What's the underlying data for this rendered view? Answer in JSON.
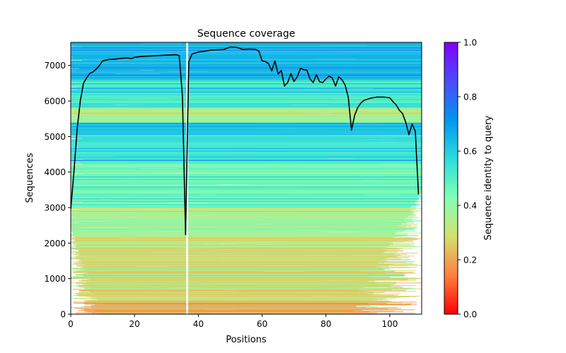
{
  "chart_data": {
    "type": "heatmap",
    "title": "Sequence coverage",
    "xlabel": "Positions",
    "ylabel": "Sequences",
    "xlim": [
      0,
      110
    ],
    "ylim": [
      0,
      7650
    ],
    "xticks": [
      0,
      20,
      40,
      60,
      80,
      100
    ],
    "yticks": [
      0,
      1000,
      2000,
      3000,
      4000,
      5000,
      6000,
      7000
    ],
    "grid": false,
    "colorbar": {
      "label": "Sequence identity to query",
      "range": [
        0,
        1
      ],
      "ticks": [
        0.0,
        0.2,
        0.4,
        0.6,
        0.8,
        1.0
      ],
      "tick_labels": [
        "0.0",
        "0.2",
        "0.4",
        "0.6",
        "0.8",
        "1.0"
      ],
      "colormap": "rainbow_r",
      "colormap_stops": [
        "#ff0000",
        "#ff7f40",
        "#d4e06f",
        "#80ffb4",
        "#2adddd",
        "#0096ef",
        "#4c4afa",
        "#8000ff"
      ]
    },
    "identity_bands": [
      {
        "from": 0,
        "to": 400,
        "identity": 0.22
      },
      {
        "from": 400,
        "to": 1200,
        "identity": 0.27
      },
      {
        "from": 1200,
        "to": 2200,
        "identity": 0.3
      },
      {
        "from": 2200,
        "to": 3000,
        "identity": 0.36
      },
      {
        "from": 3000,
        "to": 4300,
        "identity": 0.45
      },
      {
        "from": 4300,
        "to": 5100,
        "identity": 0.55
      },
      {
        "from": 5100,
        "to": 5400,
        "identity": 0.62
      },
      {
        "from": 5400,
        "to": 5800,
        "identity": 0.35
      },
      {
        "from": 5800,
        "to": 6600,
        "identity": 0.52
      },
      {
        "from": 6600,
        "to": 7650,
        "identity": 0.64
      }
    ],
    "coverage_line": {
      "name": "coverage",
      "color": "#000000",
      "x": [
        0,
        1,
        2,
        3,
        4,
        5,
        6,
        7,
        8,
        9,
        10,
        11,
        12,
        14,
        16,
        18,
        19,
        20,
        22,
        24,
        26,
        28,
        30,
        32,
        33,
        34,
        35,
        36,
        37,
        38,
        40,
        42,
        44,
        46,
        48,
        50,
        52,
        54,
        56,
        58,
        59,
        60,
        61,
        62,
        63,
        64,
        65,
        66,
        67,
        68,
        69,
        70,
        71,
        72,
        73,
        74,
        75,
        76,
        77,
        78,
        79,
        80,
        81,
        82,
        83,
        84,
        85,
        86,
        87,
        88,
        89,
        90,
        91,
        92,
        94,
        96,
        98,
        100,
        101,
        102,
        103,
        104,
        105,
        106,
        107,
        108,
        109
      ],
      "y": [
        2960,
        4000,
        5200,
        6000,
        6500,
        6650,
        6780,
        6820,
        6900,
        7000,
        7130,
        7150,
        7170,
        7180,
        7200,
        7210,
        7190,
        7230,
        7250,
        7260,
        7270,
        7280,
        7290,
        7300,
        7300,
        7280,
        6150,
        2240,
        7100,
        7320,
        7380,
        7400,
        7430,
        7440,
        7450,
        7520,
        7510,
        7450,
        7460,
        7450,
        7400,
        7130,
        7110,
        7050,
        6850,
        7130,
        6760,
        6860,
        6420,
        6520,
        6770,
        6550,
        6680,
        6920,
        6880,
        6870,
        6620,
        6520,
        6740,
        6540,
        6520,
        6620,
        6700,
        6650,
        6420,
        6680,
        6600,
        6450,
        6100,
        5180,
        5600,
        5820,
        5950,
        6020,
        6080,
        6110,
        6110,
        6090,
        5980,
        5890,
        5740,
        5650,
        5400,
        5050,
        5350,
        5150,
        3370
      ]
    },
    "gap_column": {
      "x": 36.5,
      "from": 0,
      "to": 7650
    }
  }
}
